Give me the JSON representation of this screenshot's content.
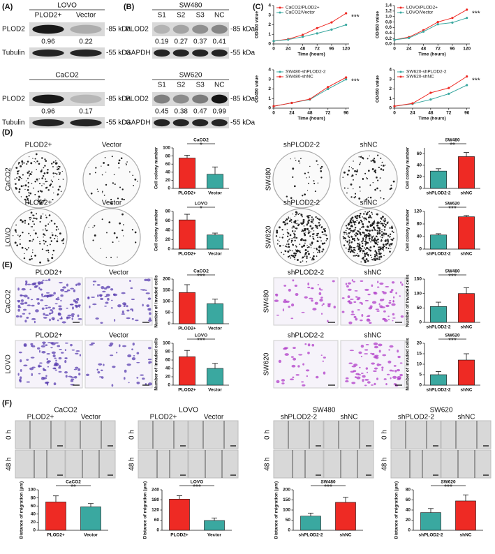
{
  "panel_labels": [
    "(A)",
    "(B)",
    "(C)",
    "(D)",
    "(E)",
    "(F)"
  ],
  "blots": [
    {
      "title": "LOVO",
      "lanes": [
        "PLOD2+",
        "Vector"
      ],
      "rows": [
        {
          "label": "PLOD2",
          "marker": "-85 kDa"
        },
        {
          "label": "Tubulin",
          "marker": "-55 kDa"
        }
      ],
      "quant": [
        0.96,
        0.22
      ]
    },
    {
      "title": "CaCO2",
      "rows": [
        {
          "label": "PLOD2",
          "marker": "-85 kDa"
        },
        {
          "label": "Tubulin",
          "marker": "-55 kDa"
        }
      ],
      "quant": [
        0.96,
        0.17
      ]
    },
    {
      "title": "SW480",
      "lanes": [
        "S1",
        "S2",
        "S3",
        "NC"
      ],
      "rows": [
        {
          "label": "PLOD2",
          "marker": "-85 kDa"
        },
        {
          "label": "GAPDH",
          "marker": "-55 kDa"
        }
      ],
      "quant": [
        0.19,
        0.27,
        0.37,
        0.41
      ]
    },
    {
      "title": "SW620",
      "lanes": [
        "S1",
        "S2",
        "S3",
        "NC"
      ],
      "rows": [
        {
          "label": "PLOD2",
          "marker": "-85 kDa"
        },
        {
          "label": "GAPDH",
          "marker": "-55 kDa"
        }
      ],
      "quant": [
        0.45,
        0.38,
        0.47,
        0.99
      ]
    }
  ],
  "colony_assays": [
    {
      "rows": [
        {
          "label": "CaCO2",
          "columns": [
            "PLOD2+",
            "Vector"
          ]
        },
        {
          "label": "LOVO",
          "columns": [
            "PLOD2+",
            "Vector"
          ]
        }
      ]
    },
    {
      "rows": [
        {
          "label": "SW480",
          "columns": [
            "shPLOD2-2",
            "shNC"
          ]
        },
        {
          "label": "SW620",
          "columns": [
            "shPLOD2-2",
            "shNC"
          ]
        }
      ]
    }
  ],
  "invasion_assays": [
    {
      "rows": [
        {
          "label": "CaCO2",
          "columns": [
            "PLOD2+",
            "Vector"
          ]
        },
        {
          "label": "LOVO",
          "columns": [
            "PLOD2+",
            "Vector"
          ]
        }
      ]
    },
    {
      "rows": [
        {
          "label": "SW480",
          "columns": [
            "shPLOD2-2",
            "shNC"
          ]
        },
        {
          "label": "SW620",
          "columns": [
            "shPLOD2-2",
            "shNC"
          ]
        }
      ]
    }
  ],
  "migration_assays": [
    {
      "title": "CaCO2",
      "columns": [
        "PLOD2+",
        "Vector"
      ],
      "times": [
        "0 h",
        "48 h"
      ]
    },
    {
      "title": "LOVO",
      "columns": [
        "PLOD2+",
        "Vector"
      ],
      "times": [
        "0 h",
        "48 h"
      ]
    },
    {
      "title": "SW480",
      "columns": [
        "shPLOD2-2",
        "shNC"
      ],
      "times": [
        "0 h",
        "48 h"
      ]
    },
    {
      "title": "SW620",
      "columns": [
        "shPLOD2-2",
        "shNC"
      ],
      "times": [
        "0 h",
        "48 h"
      ]
    }
  ],
  "chart_data": [
    {
      "type": "line",
      "x_label": "Time (hours)",
      "y_label": "OD450 value",
      "x": [
        0,
        24,
        48,
        72,
        96,
        120
      ],
      "series": [
        {
          "name": "CaCO2/PLOD2+",
          "color": "#ee2a24",
          "values": [
            0.3,
            0.5,
            0.95,
            1.65,
            2.25,
            3.2
          ]
        },
        {
          "name": "CaCO2/Vector",
          "color": "#3aa8a0",
          "values": [
            0.3,
            0.45,
            0.75,
            1.1,
            1.5,
            2.0
          ]
        }
      ],
      "xlim": [
        0,
        125
      ],
      "xticks": [
        0,
        24,
        48,
        72,
        96,
        120
      ],
      "ylim": [
        0,
        4
      ],
      "yticks": [
        0,
        1,
        2,
        3,
        4
      ],
      "annotation": "***"
    },
    {
      "type": "line",
      "x_label": "Time (hours)",
      "y_label": "OD450 value",
      "x": [
        0,
        24,
        48,
        72,
        96,
        120
      ],
      "series": [
        {
          "name": "LOVO/PLOD2+",
          "color": "#ee2a24",
          "values": [
            0.15,
            0.25,
            0.5,
            0.8,
            0.95,
            1.25
          ]
        },
        {
          "name": "LOVO/Vector",
          "color": "#3aa8a0",
          "values": [
            0.15,
            0.22,
            0.45,
            0.72,
            0.78,
            0.95
          ]
        }
      ],
      "xlim": [
        0,
        125
      ],
      "xticks": [
        0,
        24,
        48,
        72,
        96,
        120
      ],
      "ylim": [
        0,
        1.4
      ],
      "yticks": [
        {
          "value": 0,
          "label": "0.0"
        },
        0.2,
        0.4,
        0.6,
        0.8,
        {
          "value": 1,
          "label": "1.0"
        },
        1.2,
        1.4
      ],
      "annotation": "***"
    },
    {
      "type": "line",
      "x_label": "Time (hours)",
      "y_label": "OD450 value",
      "x": [
        0,
        24,
        48,
        72,
        96
      ],
      "series": [
        {
          "name": "SW480-shPLOD2-2",
          "color": "#3aa8a0",
          "values": [
            0.2,
            0.55,
            0.9,
            2.0,
            3.0
          ]
        },
        {
          "name": "SW480-shNC",
          "color": "#ee2a24",
          "values": [
            0.2,
            0.55,
            0.95,
            2.2,
            3.2
          ]
        }
      ],
      "xlim": [
        0,
        100
      ],
      "xticks": [
        0,
        24,
        48,
        72,
        96
      ],
      "ylim": [
        0,
        4
      ],
      "yticks": [
        0,
        1,
        2,
        3,
        4
      ],
      "annotation": "***"
    },
    {
      "type": "line",
      "x_label": "Time (hours)",
      "y_label": "OD450 value",
      "x": [
        0,
        24,
        48,
        72,
        96
      ],
      "series": [
        {
          "name": "SW620-shPLOD2-2",
          "color": "#3aa8a0",
          "values": [
            0.2,
            0.45,
            0.9,
            1.5,
            2.4
          ]
        },
        {
          "name": "SW620-shNC",
          "color": "#ee2a24",
          "values": [
            0.2,
            0.5,
            1.6,
            2.1,
            3.3
          ]
        }
      ],
      "xlim": [
        0,
        100
      ],
      "xticks": [
        0,
        24,
        48,
        72,
        96
      ],
      "ylim": [
        0,
        4
      ],
      "yticks": [
        0,
        1,
        2,
        3,
        4
      ],
      "annotation": "***"
    },
    {
      "type": "bar",
      "title": "CaCO2",
      "y_label": "Cell colony number",
      "categories": [
        "PLOD2+",
        "Vector"
      ],
      "values": [
        75,
        35
      ],
      "errors": [
        7,
        18
      ],
      "colors": [
        "#ee2a24",
        "#3aa8a0"
      ],
      "significance": "*",
      "ylim": [
        0,
        100
      ],
      "yticks": [
        0,
        20,
        40,
        60,
        80,
        100
      ]
    },
    {
      "type": "bar",
      "title": "LOVO",
      "y_label": "Cell colony number",
      "categories": [
        "PLOD2+",
        "Vector"
      ],
      "values": [
        62,
        30
      ],
      "errors": [
        12,
        4
      ],
      "colors": [
        "#ee2a24",
        "#3aa8a0"
      ],
      "significance": "*",
      "ylim": [
        0,
        80
      ],
      "yticks": [
        0,
        20,
        40,
        60,
        80
      ]
    },
    {
      "type": "bar",
      "title": "SW480",
      "y_label": "Cell colony number",
      "categories": [
        "shPLOD2-2",
        "shNC"
      ],
      "values": [
        30,
        55
      ],
      "errors": [
        4,
        7
      ],
      "colors": [
        "#3aa8a0",
        "#ee2a24"
      ],
      "significance": "**",
      "ylim": [
        0,
        70
      ],
      "yticks": [
        0,
        20,
        40,
        60
      ]
    },
    {
      "type": "bar",
      "title": "SW620",
      "y_label": "Cell colony number",
      "categories": [
        "shPLOD2-2",
        "shNC"
      ],
      "values": [
        45,
        103
      ],
      "errors": [
        4,
        4
      ],
      "colors": [
        "#3aa8a0",
        "#ee2a24"
      ],
      "significance": "***",
      "ylim": [
        0,
        120
      ],
      "yticks": [
        0,
        40,
        80,
        120
      ]
    },
    {
      "type": "bar",
      "title": "CaCO2",
      "y_label": "Number of invaded cells",
      "categories": [
        "PLOD2+",
        "Vector"
      ],
      "values": [
        140,
        90
      ],
      "errors": [
        35,
        20
      ],
      "colors": [
        "#ee2a24",
        "#3aa8a0"
      ],
      "significance": "***",
      "ylim": [
        0,
        200
      ],
      "yticks": [
        0,
        50,
        100,
        150,
        200
      ]
    },
    {
      "type": "bar",
      "title": "LOVO",
      "y_label": "Number of invaded cells",
      "categories": [
        "PLOD2+",
        "Vector"
      ],
      "values": [
        68,
        40
      ],
      "errors": [
        15,
        12
      ],
      "colors": [
        "#ee2a24",
        "#3aa8a0"
      ],
      "significance": "***",
      "ylim": [
        0,
        100
      ],
      "yticks": [
        0,
        20,
        40,
        60,
        80,
        100
      ]
    },
    {
      "type": "bar",
      "title": "SW480",
      "y_label": "Number of invaded cells",
      "categories": [
        "shPLOD2-2",
        "shNC"
      ],
      "values": [
        55,
        100
      ],
      "errors": [
        15,
        20
      ],
      "colors": [
        "#3aa8a0",
        "#ee2a24"
      ],
      "significance": "***",
      "ylim": [
        0,
        150
      ],
      "yticks": [
        0,
        50,
        100,
        150
      ]
    },
    {
      "type": "bar",
      "title": "SW620",
      "y_label": "Number of invaded cells",
      "categories": [
        "shPLOD2-2",
        "shNC"
      ],
      "values": [
        5,
        12
      ],
      "errors": [
        1.5,
        3
      ],
      "colors": [
        "#3aa8a0",
        "#ee2a24"
      ],
      "significance": "***",
      "ylim": [
        0,
        20
      ],
      "yticks": [
        0,
        5,
        10,
        15,
        20
      ]
    },
    {
      "type": "bar",
      "title": "CaCO2",
      "y_label": "Distance of migration (μm)",
      "categories": [
        "PLOD2+",
        "Vector"
      ],
      "values": [
        70,
        58
      ],
      "errors": [
        15,
        8
      ],
      "colors": [
        "#ee2a24",
        "#3aa8a0"
      ],
      "significance": "**",
      "ylim": [
        0,
        100
      ],
      "yticks": [
        0,
        20,
        40,
        60,
        80,
        100
      ]
    },
    {
      "type": "bar",
      "title": "LOVO",
      "y_label": "Distance of migration (μm)",
      "categories": [
        "PLOD2+",
        "Vector"
      ],
      "values": [
        185,
        58
      ],
      "errors": [
        20,
        15
      ],
      "colors": [
        "#ee2a24",
        "#3aa8a0"
      ],
      "significance": "***",
      "ylim": [
        0,
        240
      ],
      "yticks": [
        0,
        60,
        120,
        180,
        240
      ]
    },
    {
      "type": "bar",
      "title": "SW480",
      "y_label": "Distance of migration (μm)",
      "categories": [
        "shPLOD2-2",
        "shNC"
      ],
      "values": [
        70,
        138
      ],
      "errors": [
        15,
        25
      ],
      "colors": [
        "#3aa8a0",
        "#ee2a24"
      ],
      "significance": "***",
      "ylim": [
        0,
        200
      ],
      "yticks": [
        0,
        50,
        100,
        150,
        200
      ]
    },
    {
      "type": "bar",
      "title": "SW620",
      "y_label": "Distance of migration (μm)",
      "categories": [
        "shPLOD2-2",
        "shNC"
      ],
      "values": [
        35,
        58
      ],
      "errors": [
        8,
        12
      ],
      "colors": [
        "#3aa8a0",
        "#ee2a24"
      ],
      "significance": "***",
      "ylim": [
        0,
        80
      ],
      "yticks": [
        0,
        20,
        40,
        60,
        80
      ]
    }
  ]
}
